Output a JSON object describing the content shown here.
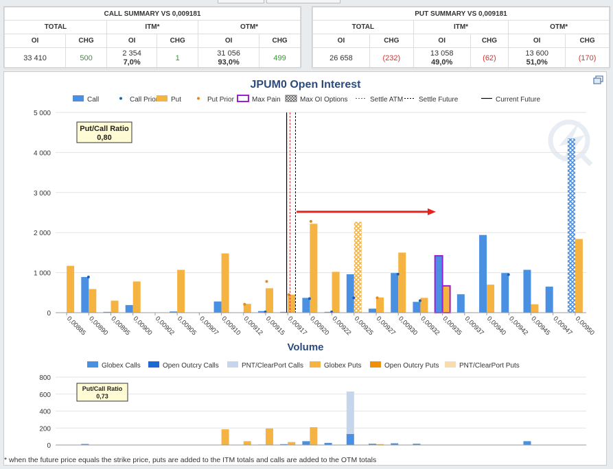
{
  "call_summary": {
    "title": "CALL SUMMARY VS 0,009181",
    "groups": [
      "TOTAL",
      "ITM*",
      "OTM*"
    ],
    "headers": [
      "OI",
      "CHG",
      "OI",
      "CHG",
      "OI",
      "CHG"
    ],
    "total": {
      "oi": "33 410",
      "chg": "500"
    },
    "itm": {
      "oi": "2 354",
      "pct": "7,0%",
      "chg": "1"
    },
    "otm": {
      "oi": "31 056",
      "pct": "93,0%",
      "chg": "499"
    }
  },
  "put_summary": {
    "title": "PUT SUMMARY VS 0,009181",
    "groups": [
      "TOTAL",
      "ITM*",
      "OTM*"
    ],
    "headers": [
      "OI",
      "CHG",
      "OI",
      "CHG",
      "OI",
      "CHG"
    ],
    "total": {
      "oi": "26 658",
      "chg": "(232)"
    },
    "itm": {
      "oi": "13 058",
      "pct": "49,0%",
      "chg": "(62)"
    },
    "otm": {
      "oi": "13 600",
      "pct": "51,0%",
      "chg": "(170)"
    }
  },
  "colors": {
    "call": "#4a90e2",
    "put": "#f5b342",
    "prior_call": "#1f5fb0",
    "prior_put": "#e08a1e",
    "max_pain": "#9b1fd6",
    "settle_atm": "#d9302c",
    "arrow": "#e8201e",
    "outcry_call": "#1a6ad6",
    "pnt_call": "#c5d5ec",
    "outcry_put": "#f0900a",
    "pnt_put": "#f8dcb0"
  },
  "icons": {
    "expand": "window-restore-icon",
    "watermark": "logo-watermark"
  },
  "footnote": "* when the future price equals the strike price, puts are added to the ITM totals and calls are added to the OTM totals",
  "chart_data": [
    {
      "type": "bar",
      "title": "JPUM0 Open Interest",
      "legend": [
        "Call",
        "Call Prior",
        "Put",
        "Put Prior",
        "Max Pain",
        "Max OI Options",
        "Settle ATM",
        "Settle Future",
        "Current Future"
      ],
      "legend_position": "top",
      "categories": [
        "0,00885",
        "0,00890",
        "0,00895",
        "0,00900",
        "0,00902",
        "0,00905",
        "0,00907",
        "0,00910",
        "0,00912",
        "0,00915",
        "0,00917",
        "0,00920",
        "0,00922",
        "0,00925",
        "0,00927",
        "0,00930",
        "0,00932",
        "0,00935",
        "0,00937",
        "0,00940",
        "0,00942",
        "0,00945",
        "0,00947",
        "0,00950"
      ],
      "series": [
        {
          "name": "Call",
          "values": [
            0,
            890,
            20,
            190,
            0,
            30,
            0,
            280,
            0,
            40,
            20,
            370,
            20,
            960,
            100,
            990,
            270,
            1420,
            460,
            1940,
            990,
            1070,
            650,
            4350
          ]
        },
        {
          "name": "Put",
          "values": [
            1170,
            590,
            300,
            780,
            0,
            1070,
            0,
            1480,
            220,
            610,
            450,
            2220,
            1020,
            2270,
            380,
            1500,
            370,
            670,
            10,
            700,
            0,
            210,
            0,
            1840
          ]
        }
      ],
      "call_prior": [
        null,
        890,
        null,
        null,
        null,
        null,
        null,
        null,
        null,
        20,
        null,
        350,
        20,
        370,
        null,
        960,
        300,
        null,
        null,
        null,
        950,
        null,
        null,
        null
      ],
      "put_prior": [
        null,
        null,
        null,
        null,
        null,
        null,
        null,
        null,
        210,
        780,
        450,
        2280,
        null,
        null,
        370,
        null,
        null,
        null,
        null,
        null,
        null,
        null,
        null,
        null
      ],
      "max_pain": "0,00935",
      "max_oi": {
        "call": "0,00950",
        "put": "0,00925"
      },
      "settle_atm_x": 10.1,
      "settle_future_x": 10.35,
      "current_future_x": 9.95,
      "arrow": {
        "from": 10.4,
        "to": 16.7,
        "y": 2520
      },
      "ylim": [
        0,
        5000
      ],
      "yticks": [
        "0",
        "1 000",
        "2 000",
        "3 000",
        "4 000",
        "5 000"
      ],
      "grid": true,
      "callout": {
        "label": "Put/Call Ratio",
        "value": "0,80"
      }
    },
    {
      "type": "bar",
      "title": "Volume",
      "legend": [
        "Globex Calls",
        "Open Outcry Calls",
        "PNT/ClearPort Calls",
        "Globex Puts",
        "Open Outcry Puts",
        "PNT/ClearPort Puts"
      ],
      "legend_position": "top",
      "call_series": [
        {
          "name": "Globex Calls",
          "values": [
            0,
            12,
            0,
            0,
            0,
            0,
            0,
            0,
            0,
            5,
            10,
            45,
            25,
            130,
            15,
            20,
            15,
            0,
            0,
            0,
            0,
            45,
            0,
            0
          ]
        },
        {
          "name": "PNT/ClearPort Calls",
          "values": [
            0,
            0,
            0,
            0,
            0,
            0,
            0,
            0,
            0,
            0,
            0,
            0,
            0,
            500,
            0,
            0,
            0,
            0,
            0,
            0,
            0,
            0,
            0,
            0
          ]
        }
      ],
      "put_series": [
        {
          "name": "Globex Puts",
          "values": [
            0,
            0,
            0,
            0,
            0,
            0,
            0,
            185,
            45,
            195,
            35,
            210,
            0,
            0,
            10,
            0,
            0,
            0,
            0,
            0,
            0,
            0,
            0,
            0
          ]
        }
      ],
      "ylim": [
        0,
        800
      ],
      "yticks": [
        "0",
        "200",
        "400",
        "600",
        "800"
      ],
      "grid": true,
      "callout": {
        "label": "Put/Call Ratio",
        "value": "0,73"
      }
    }
  ]
}
